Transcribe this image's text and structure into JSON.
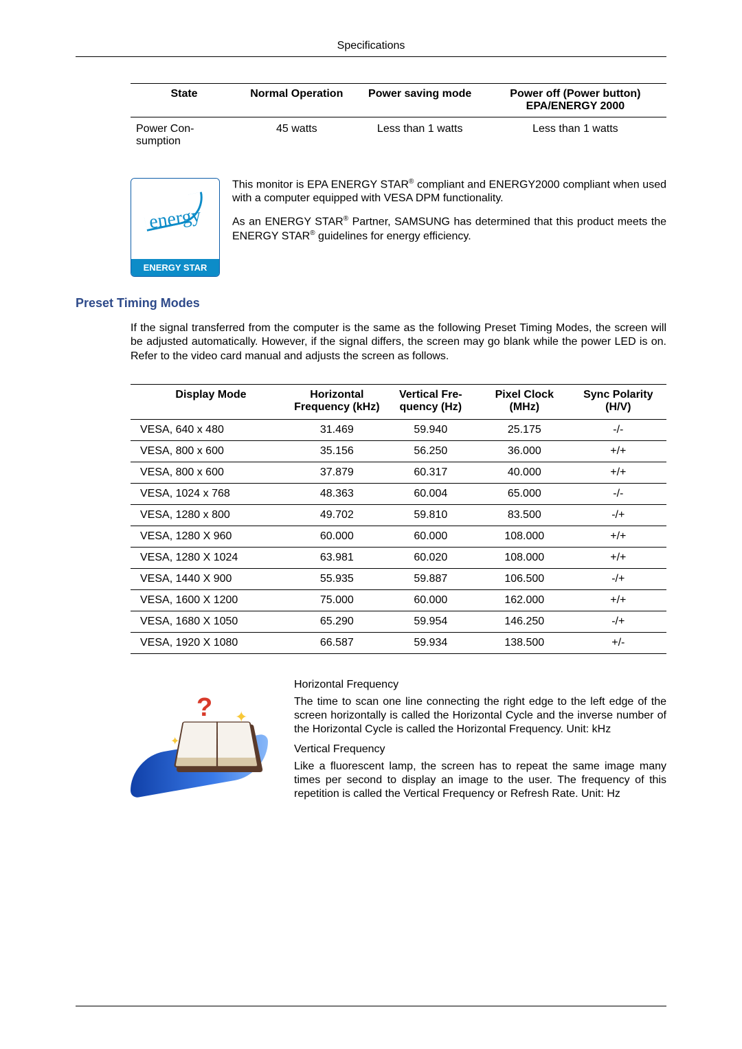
{
  "page": {
    "header": "Specifications"
  },
  "powerTable": {
    "headers": {
      "state": "State",
      "normal": "Normal Opera­tion",
      "saving": "Power saving mode",
      "off": "Power off (Power but­ton) EPA/ENERGY 2000"
    },
    "row": {
      "label": "Power Con­sumption",
      "normal": "45 watts",
      "saving": "Less than 1 watts",
      "off": "Less than 1 watts"
    }
  },
  "energyStar": {
    "logoBottom": "ENERGY STAR",
    "logoScript": "energy",
    "para1_a": "This monitor is EPA ENERGY STAR",
    "para1_b": " compliant and ENERGY2000 compliant when used with a computer equipped with VESA DPM functionality.",
    "para2_a": "As an ENERGY STAR",
    "para2_b": " Partner, SAMSUNG has deter­mined that this product meets the ENERGY STAR",
    "para2_c": " guidelines for energy efficiency."
  },
  "timing": {
    "heading": "Preset Timing Modes",
    "intro": "If the signal transferred from the computer is the same as the following Preset Timing Modes, the screen will be adjusted automatically. However, if the signal differs, the screen may go blank while the power LED is on. Refer to the video card manual and adjusts the screen as follows.",
    "headers": {
      "mode": "Display Mode",
      "hfreq": "Horizontal Frequency (kHz)",
      "vfreq": "Vertical Fre­quency (Hz)",
      "pclock": "Pixel Clock (MHz)",
      "sync": "Sync Polarity (H/V)"
    },
    "rows": [
      {
        "mode": "VESA, 640 x 480",
        "hfreq": "31.469",
        "vfreq": "59.940",
        "pclock": "25.175",
        "sync": "-/-"
      },
      {
        "mode": "VESA, 800 x 600",
        "hfreq": "35.156",
        "vfreq": "56.250",
        "pclock": "36.000",
        "sync": "+/+"
      },
      {
        "mode": "VESA, 800 x 600",
        "hfreq": "37.879",
        "vfreq": "60.317",
        "pclock": "40.000",
        "sync": "+/+"
      },
      {
        "mode": "VESA, 1024 x 768",
        "hfreq": "48.363",
        "vfreq": "60.004",
        "pclock": "65.000",
        "sync": "-/-"
      },
      {
        "mode": "VESA, 1280 x 800",
        "hfreq": "49.702",
        "vfreq": "59.810",
        "pclock": "83.500",
        "sync": "-/+"
      },
      {
        "mode": "VESA, 1280 X 960",
        "hfreq": "60.000",
        "vfreq": "60.000",
        "pclock": "108.000",
        "sync": "+/+"
      },
      {
        "mode": "VESA, 1280 X 1024",
        "hfreq": "63.981",
        "vfreq": "60.020",
        "pclock": "108.000",
        "sync": "+/+"
      },
      {
        "mode": "VESA, 1440 X 900",
        "hfreq": "55.935",
        "vfreq": "59.887",
        "pclock": "106.500",
        "sync": "-/+"
      },
      {
        "mode": "VESA, 1600 X 1200",
        "hfreq": "75.000",
        "vfreq": "60.000",
        "pclock": "162.000",
        "sync": "+/+"
      },
      {
        "mode": "VESA, 1680 X 1050",
        "hfreq": "65.290",
        "vfreq": "59.954",
        "pclock": "146.250",
        "sync": "-/+"
      },
      {
        "mode": "VESA, 1920 X 1080",
        "hfreq": "66.587",
        "vfreq": "59.934",
        "pclock": "138.500",
        "sync": "+/-"
      }
    ]
  },
  "freqExplain": {
    "h_head": "Horizontal Frequency",
    "h_body": "The time to scan one line connecting the right edge to the left edge of the screen horizontally is called the Horizontal Cycle and the inverse number of the Hor­izontal Cycle is called the Horizontal Frequency. Unit: kHz",
    "v_head": "Vertical Frequency",
    "v_body": "Like a fluorescent lamp, the screen has to repeat the same image many times per second to display an image to the user. The frequency of this repetition is called the Vertical Frequency or Refresh Rate. Unit: Hz"
  },
  "colors": {
    "heading": "#2e4a8a",
    "logoBg": "#0d8cc8",
    "logoBorder": "#0d5ca8"
  }
}
